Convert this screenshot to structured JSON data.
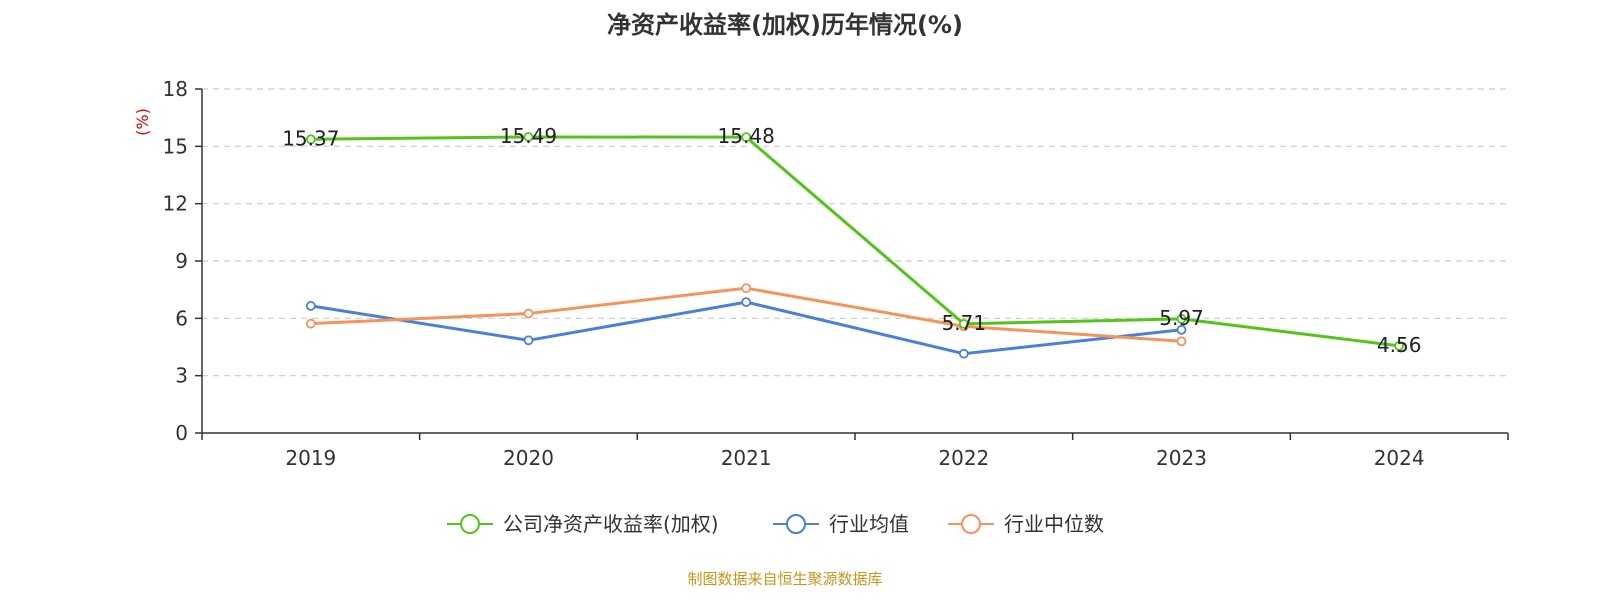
{
  "chart_data": {
    "type": "line",
    "title": "净资产收益率(加权)历年情况(%)",
    "ylabel": "(%)",
    "categories": [
      "2019",
      "2020",
      "2021",
      "2022",
      "2023",
      "2024"
    ],
    "ylim": [
      0,
      18
    ],
    "yticks": [
      "0",
      "3",
      "6",
      "9",
      "12",
      "15",
      "18"
    ],
    "grid": true,
    "legend_position": "bottom",
    "series": [
      {
        "name": "公司净资产收益率(加权)",
        "color": "#52c41a",
        "values": [
          15.37,
          15.49,
          15.48,
          5.71,
          5.97,
          4.56
        ],
        "labels": [
          "15.37",
          "15.49",
          "15.48",
          "5.71",
          "5.97",
          "4.56"
        ]
      },
      {
        "name": "行业均值",
        "color": "#4a7fdc",
        "values": [
          6.65,
          4.85,
          6.85,
          4.15,
          5.4,
          null
        ]
      },
      {
        "name": "行业中位数",
        "color": "#f4935c",
        "values": [
          5.72,
          6.25,
          7.58,
          5.58,
          4.8,
          null
        ]
      }
    ]
  },
  "source": "制图数据来自恒生聚源数据库",
  "colors": {
    "ylabel": "#e60000",
    "source": "#c8961e",
    "axis": "#333333",
    "grid": "#cccccc"
  }
}
